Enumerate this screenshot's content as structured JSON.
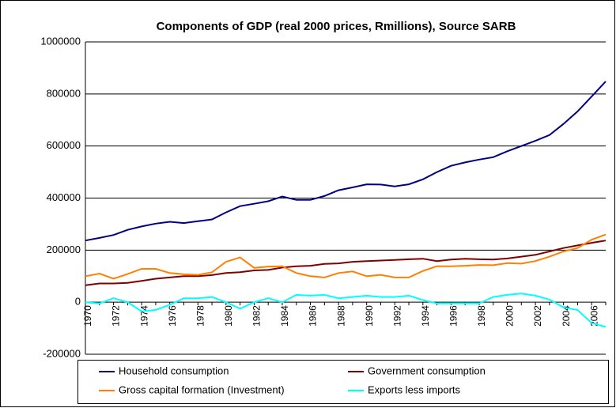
{
  "chart_data": {
    "type": "line",
    "title": "Components of GDP (real 2000 prices, Rmillions), Source SARB",
    "categories": [
      "1970",
      null,
      "1972",
      null,
      "1974",
      null,
      "1976",
      null,
      "1978",
      null,
      "1980",
      null,
      "1982",
      null,
      "1984",
      null,
      "1986",
      null,
      "1988",
      null,
      "1990",
      null,
      "1992",
      null,
      "1994",
      null,
      "1996",
      null,
      "1998",
      null,
      "2000",
      null,
      "2002",
      null,
      "2004",
      null,
      "2006",
      null
    ],
    "series": [
      {
        "name": "Household consumption",
        "color": "#000080",
        "values": [
          237000,
          247000,
          258000,
          278000,
          291000,
          302000,
          309000,
          304000,
          311000,
          318000,
          345000,
          369000,
          378000,
          388000,
          406000,
          393000,
          393000,
          408000,
          430000,
          441000,
          453000,
          452000,
          445000,
          453000,
          472000,
          500000,
          524000,
          537000,
          548000,
          557000,
          580000,
          600000,
          620000,
          642000,
          685000,
          733000,
          790000,
          848000
        ]
      },
      {
        "name": "Government consumption",
        "color": "#800000",
        "values": [
          65000,
          72000,
          72000,
          74000,
          82000,
          90000,
          95000,
          100000,
          100000,
          104000,
          112000,
          115000,
          122000,
          124000,
          133000,
          138000,
          140000,
          147000,
          149000,
          155000,
          158000,
          160000,
          162000,
          165000,
          167000,
          158000,
          164000,
          167000,
          165000,
          164000,
          168000,
          175000,
          182000,
          195000,
          208000,
          218000,
          228000,
          237000
        ]
      },
      {
        "name": "Gross capital formation (Investment)",
        "color": "#ff8000",
        "values": [
          100000,
          110000,
          90000,
          108000,
          128000,
          128000,
          112000,
          107000,
          105000,
          115000,
          155000,
          172000,
          132000,
          137000,
          138000,
          112000,
          100000,
          95000,
          112000,
          118000,
          100000,
          105000,
          95000,
          95000,
          120000,
          138000,
          138000,
          140000,
          143000,
          142000,
          150000,
          148000,
          158000,
          175000,
          195000,
          208000,
          240000,
          260000
        ]
      },
      {
        "name": "Exports less imports",
        "color": "#00ffff",
        "values": [
          0,
          -5000,
          15000,
          0,
          -35000,
          -30000,
          -10000,
          15000,
          15000,
          20000,
          0,
          -25000,
          0,
          15000,
          0,
          28000,
          25000,
          28000,
          15000,
          20000,
          25000,
          20000,
          20000,
          25000,
          8000,
          -5000,
          -5000,
          -5000,
          -5000,
          20000,
          28000,
          33000,
          25000,
          10000,
          -20000,
          -30000,
          -80000,
          -95000
        ]
      }
    ],
    "ylim": [
      -200000,
      1000000
    ],
    "yticks": [
      -200000,
      0,
      200000,
      400000,
      600000,
      800000,
      1000000
    ],
    "grid": true
  }
}
